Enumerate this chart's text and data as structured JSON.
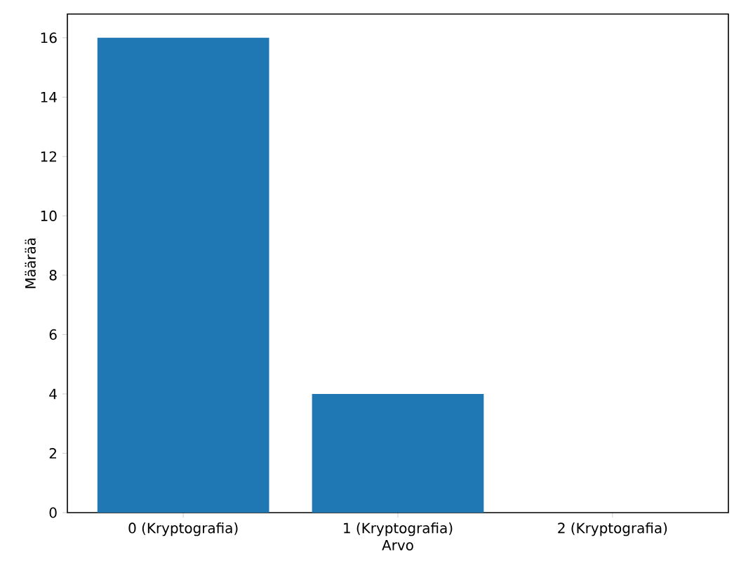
{
  "chart_data": {
    "type": "bar",
    "xlabel": "Arvo",
    "ylabel": "Määrää",
    "categories": [
      "0 (Kryptografia)",
      "1 (Kryptografia)",
      "2 (Kryptografia)"
    ],
    "values": [
      16,
      4,
      0
    ],
    "color": "#1f77b4",
    "ylim": [
      0,
      16.8
    ],
    "yticks": [
      0,
      2,
      4,
      6,
      8,
      10,
      12,
      14,
      16
    ],
    "grid": false
  }
}
